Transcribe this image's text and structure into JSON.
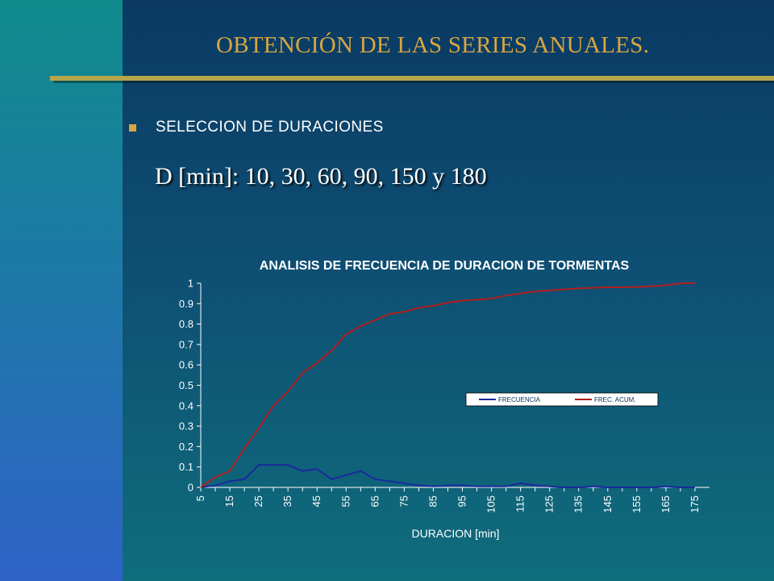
{
  "slide": {
    "title": "OBTENCIÓN DE LAS SERIES ANUALES.",
    "bullet": "SELECCION DE DURACIONES",
    "subline": "D [min]: 10, 30, 60, 90, 150 y 180"
  },
  "colors": {
    "title": "#d9a640",
    "frecuencia": "#1a2a9c",
    "frec_acum": "#b21e1e"
  },
  "chart_data": {
    "type": "line",
    "title": "ANALISIS DE FRECUENCIA DE DURACION DE TORMENTAS",
    "xlabel": "DURACION [min]",
    "ylabel": "",
    "x": [
      5,
      10,
      15,
      20,
      25,
      30,
      35,
      40,
      45,
      50,
      55,
      60,
      65,
      70,
      75,
      80,
      85,
      90,
      95,
      100,
      105,
      110,
      115,
      120,
      125,
      130,
      135,
      140,
      145,
      150,
      155,
      160,
      165,
      170,
      175
    ],
    "x_tick_labels": [
      "5",
      "15",
      "25",
      "35",
      "45",
      "55",
      "65",
      "75",
      "85",
      "95",
      "105",
      "115",
      "125",
      "135",
      "145",
      "155",
      "165",
      "175"
    ],
    "y_tick_labels": [
      "0",
      "0.1",
      "0.2",
      "0.3",
      "0.4",
      "0.5",
      "0.6",
      "0.7",
      "0.8",
      "0.9",
      "1"
    ],
    "ylim": [
      0,
      1
    ],
    "grid": false,
    "legend_position": "right-middle",
    "series": [
      {
        "name": "FRECUENCIA",
        "values": [
          0,
          0.01,
          0.03,
          0.04,
          0.11,
          0.11,
          0.11,
          0.08,
          0.09,
          0.04,
          0.06,
          0.08,
          0.04,
          0.03,
          0.02,
          0.01,
          0.005,
          0.01,
          0.01,
          0.005,
          0.005,
          0.005,
          0.02,
          0.01,
          0.005,
          0,
          0,
          0.005,
          0,
          0,
          0,
          0,
          0.005,
          0,
          0
        ]
      },
      {
        "name": "FREC. ACUM.",
        "values": [
          0,
          0.05,
          0.08,
          0.19,
          0.29,
          0.4,
          0.47,
          0.56,
          0.61,
          0.67,
          0.75,
          0.79,
          0.82,
          0.85,
          0.86,
          0.88,
          0.89,
          0.905,
          0.915,
          0.92,
          0.925,
          0.94,
          0.95,
          0.96,
          0.965,
          0.97,
          0.975,
          0.978,
          0.98,
          0.98,
          0.982,
          0.985,
          0.99,
          1.0,
          1.0
        ]
      }
    ]
  }
}
